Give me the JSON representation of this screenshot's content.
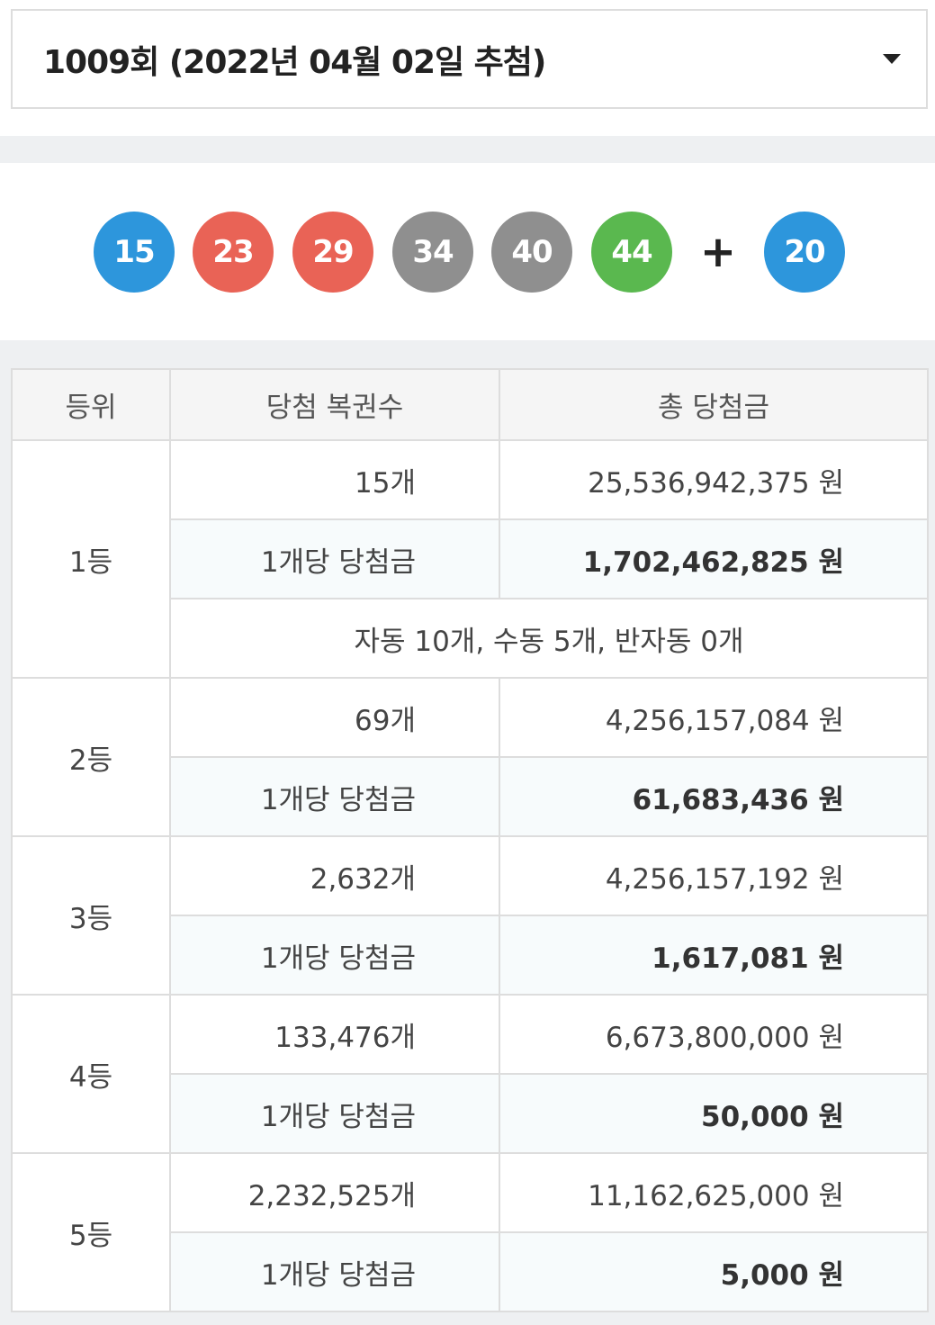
{
  "round_select": {
    "label": "1009회 (2022년 04월 02일 추첨)"
  },
  "colors": {
    "ball_blue": "#2d96dc",
    "ball_red": "#e96356",
    "ball_gray": "#8f8f8f",
    "ball_green": "#5ab84f"
  },
  "winning_numbers": {
    "balls": [
      {
        "number": "15",
        "color": "#2d96dc"
      },
      {
        "number": "23",
        "color": "#e96356"
      },
      {
        "number": "29",
        "color": "#e96356"
      },
      {
        "number": "34",
        "color": "#8f8f8f"
      },
      {
        "number": "40",
        "color": "#8f8f8f"
      },
      {
        "number": "44",
        "color": "#5ab84f"
      }
    ],
    "plus": "+",
    "bonus": {
      "number": "20",
      "color": "#2d96dc"
    }
  },
  "table": {
    "headers": {
      "rank": "등위",
      "count": "당첨 복권수",
      "total": "총 당첨금"
    },
    "per_ticket_label": "1개당 당첨금",
    "rows": [
      {
        "rank": "1등",
        "count": "15개",
        "total": "25,536,942,375 원",
        "per_ticket": "1,702,462,825 원",
        "note": "자동 10개, 수동 5개, 반자동 0개"
      },
      {
        "rank": "2등",
        "count": "69개",
        "total": "4,256,157,084 원",
        "per_ticket": "61,683,436 원"
      },
      {
        "rank": "3등",
        "count": "2,632개",
        "total": "4,256,157,192 원",
        "per_ticket": "1,617,081 원"
      },
      {
        "rank": "4등",
        "count": "133,476개",
        "total": "6,673,800,000 원",
        "per_ticket": "50,000 원"
      },
      {
        "rank": "5등",
        "count": "2,232,525개",
        "total": "11,162,625,000 원",
        "per_ticket": "5,000 원"
      }
    ]
  }
}
